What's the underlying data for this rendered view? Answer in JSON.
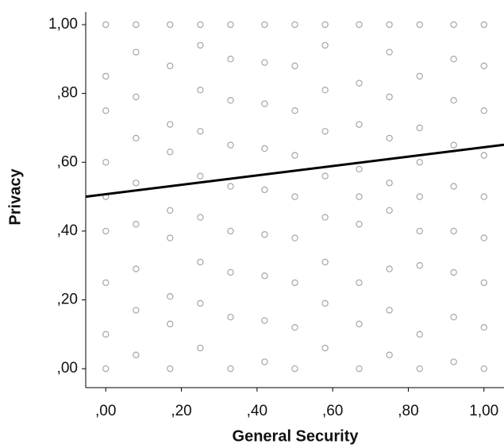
{
  "chart_data": {
    "type": "scatter",
    "x_label": "General Security",
    "y_label": "Privacy",
    "color": "#a6a6a6",
    "xlim": [
      -0.053,
      1.053
    ],
    "ylim": [
      -0.055,
      1.037
    ],
    "xticks": [
      {
        "value": 0,
        "label": ",00"
      },
      {
        "value": 0.2,
        "label": ",20"
      },
      {
        "value": 0.4,
        "label": ",40"
      },
      {
        "value": 0.6,
        "label": ",60"
      },
      {
        "value": 0.8,
        "label": ",80"
      },
      {
        "value": 1,
        "label": "1,00"
      }
    ],
    "yticks": [
      {
        "value": 0,
        "label": ",00"
      },
      {
        "value": 0.2,
        "label": ",20"
      },
      {
        "value": 0.4,
        "label": ",40"
      },
      {
        "value": 0.6,
        "label": ",60"
      },
      {
        "value": 0.8,
        "label": ",80"
      },
      {
        "value": 1,
        "label": "1,00"
      }
    ],
    "x": [
      0,
      0,
      0,
      0,
      0,
      0,
      0,
      0,
      0,
      0.08,
      0.08,
      0.08,
      0.08,
      0.08,
      0.08,
      0.08,
      0.08,
      0.08,
      0.17,
      0.17,
      0.17,
      0.17,
      0.17,
      0.17,
      0.17,
      0.17,
      0.17,
      0.25,
      0.25,
      0.25,
      0.25,
      0.25,
      0.25,
      0.25,
      0.25,
      0.25,
      0.33,
      0.33,
      0.33,
      0.33,
      0.33,
      0.33,
      0.33,
      0.33,
      0.33,
      0.42,
      0.42,
      0.42,
      0.42,
      0.42,
      0.42,
      0.42,
      0.42,
      0.42,
      0.5,
      0.5,
      0.5,
      0.5,
      0.5,
      0.5,
      0.5,
      0.5,
      0.5,
      0.58,
      0.58,
      0.58,
      0.58,
      0.58,
      0.58,
      0.58,
      0.58,
      0.58,
      0.67,
      0.67,
      0.67,
      0.67,
      0.67,
      0.67,
      0.67,
      0.67,
      0.67,
      0.75,
      0.75,
      0.75,
      0.75,
      0.75,
      0.75,
      0.75,
      0.75,
      0.75,
      0.83,
      0.83,
      0.83,
      0.83,
      0.83,
      0.83,
      0.83,
      0.83,
      0.83,
      0.92,
      0.92,
      0.92,
      0.92,
      0.92,
      0.92,
      0.92,
      0.92,
      0.92,
      1,
      1,
      1,
      1,
      1,
      1,
      1,
      1,
      1
    ],
    "values": [
      0,
      0.1,
      0.25,
      0.4,
      0.5,
      0.6,
      0.75,
      0.85,
      1,
      0.04,
      0.17,
      0.29,
      0.42,
      0.54,
      0.67,
      0.79,
      0.92,
      1,
      0,
      0.13,
      0.21,
      0.38,
      0.46,
      0.63,
      0.71,
      0.88,
      1,
      0.06,
      0.19,
      0.31,
      0.44,
      0.56,
      0.69,
      0.81,
      0.94,
      1,
      0,
      0.15,
      0.28,
      0.4,
      0.53,
      0.65,
      0.78,
      0.9,
      1,
      0.02,
      0.14,
      0.27,
      0.39,
      0.52,
      0.64,
      0.77,
      0.89,
      1,
      0,
      0.12,
      0.25,
      0.38,
      0.5,
      0.62,
      0.75,
      0.88,
      1,
      0.06,
      0.19,
      0.31,
      0.44,
      0.56,
      0.69,
      0.81,
      0.94,
      1,
      0,
      0.13,
      0.25,
      0.42,
      0.5,
      0.58,
      0.71,
      0.83,
      1,
      0.04,
      0.17,
      0.29,
      0.46,
      0.54,
      0.67,
      0.79,
      0.92,
      1,
      0,
      0.1,
      0.3,
      0.4,
      0.5,
      0.6,
      0.7,
      0.85,
      1,
      0.02,
      0.15,
      0.28,
      0.4,
      0.53,
      0.65,
      0.78,
      0.9,
      1,
      0,
      0.12,
      0.25,
      0.38,
      0.5,
      0.62,
      0.75,
      0.88,
      1
    ],
    "fit_line": {
      "x": [
        -0.053,
        1.053
      ],
      "values": [
        0.5,
        0.651
      ],
      "color": "#000000"
    }
  }
}
